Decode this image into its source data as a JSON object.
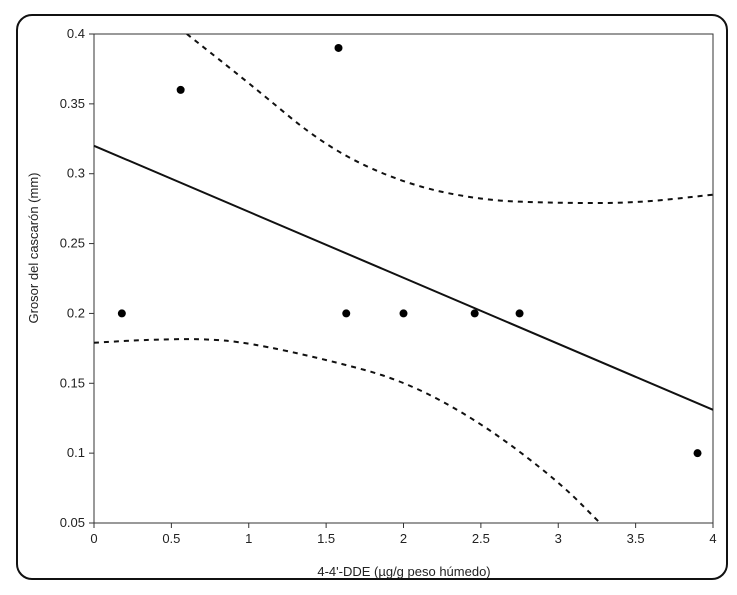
{
  "chart_data": {
    "type": "scatter",
    "title": "",
    "xlabel": "4-4'-DDE (µg/g peso húmedo)",
    "ylabel": "Grosor del cascarón (mm)",
    "xlim": [
      0,
      4
    ],
    "ylim": [
      0.05,
      0.4
    ],
    "xticks": [
      "0",
      "0.5",
      "1",
      "1.5",
      "2",
      "2.5",
      "3",
      "3.5",
      "4"
    ],
    "yticks": [
      "0.05",
      "0.1",
      "0.15",
      "0.2",
      "0.25",
      "0.3",
      "0.35",
      "0.4"
    ],
    "grid": false,
    "points": [
      {
        "x": 0.18,
        "y": 0.2
      },
      {
        "x": 0.56,
        "y": 0.36
      },
      {
        "x": 1.58,
        "y": 0.39
      },
      {
        "x": 1.63,
        "y": 0.2
      },
      {
        "x": 2.0,
        "y": 0.2
      },
      {
        "x": 2.46,
        "y": 0.2
      },
      {
        "x": 2.75,
        "y": 0.2
      },
      {
        "x": 3.9,
        "y": 0.1
      }
    ],
    "fit_line": {
      "x": [
        0,
        4
      ],
      "y": [
        0.32,
        0.131
      ]
    },
    "confidence_upper": {
      "x": [
        0.6,
        1.0,
        1.5,
        2.0,
        2.5,
        3.0,
        3.5,
        4.0
      ],
      "y": [
        0.4,
        0.365,
        0.319,
        0.293,
        0.281,
        0.279,
        0.279,
        0.285
      ]
    },
    "confidence_lower": {
      "x": [
        0.0,
        0.3,
        0.7,
        1.0,
        1.5,
        2.0,
        2.5,
        3.0,
        3.27
      ],
      "y": [
        0.179,
        0.181,
        0.182,
        0.179,
        0.167,
        0.152,
        0.122,
        0.08,
        0.05
      ]
    }
  }
}
